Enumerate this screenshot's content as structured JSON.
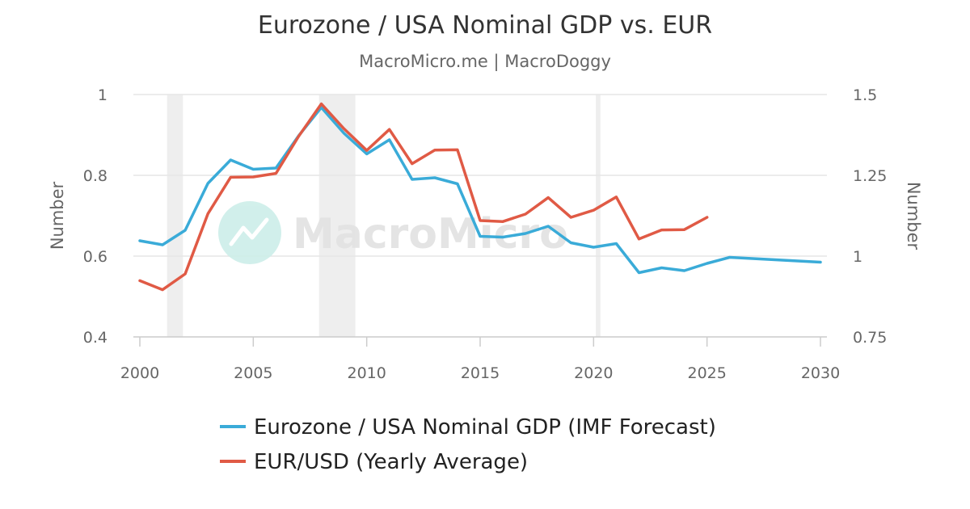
{
  "chart_data": {
    "type": "line",
    "title": "Eurozone / USA Nominal GDP vs. EUR",
    "subtitle": "MacroMicro.me | MacroDoggy",
    "watermark": "MacroMicro",
    "xlim": [
      2000,
      2030
    ],
    "x_ticks": [
      2000,
      2005,
      2010,
      2015,
      2020,
      2025,
      2030
    ],
    "y_left": {
      "label": "Number",
      "lim": [
        0.4,
        1.0
      ],
      "ticks": [
        "0.4",
        "0.6",
        "0.8",
        "1"
      ]
    },
    "y_right": {
      "label": "Number",
      "lim": [
        0.75,
        1.5
      ],
      "ticks": [
        "0.75",
        "1",
        "1.25",
        "1.5"
      ]
    },
    "recession_bands": [
      [
        2001.2,
        2001.9
      ],
      [
        2007.9,
        2009.5
      ],
      [
        2020.1,
        2020.3
      ]
    ],
    "grid": true,
    "legend_position": "bottom",
    "series": [
      {
        "name": "Eurozone / USA Nominal GDP (IMF Forecast)",
        "axis": "left",
        "color": "#3aabd8",
        "x": [
          2000,
          2001,
          2002,
          2003,
          2004,
          2005,
          2006,
          2007,
          2008,
          2009,
          2010,
          2011,
          2012,
          2013,
          2014,
          2015,
          2016,
          2017,
          2018,
          2019,
          2020,
          2021,
          2022,
          2023,
          2024,
          2025,
          2026,
          2027,
          2028,
          2029,
          2030
        ],
        "values": [
          0.638,
          0.628,
          0.664,
          0.78,
          0.838,
          0.815,
          0.818,
          0.898,
          0.968,
          0.904,
          0.853,
          0.888,
          0.79,
          0.794,
          0.779,
          0.649,
          0.647,
          0.656,
          0.674,
          0.633,
          0.622,
          0.631,
          0.559,
          0.571,
          0.564,
          0.582,
          0.597,
          0.594,
          0.591,
          0.588,
          0.585
        ]
      },
      {
        "name": "EUR/USD (Yearly Average)",
        "axis": "right",
        "color": "#e05a45",
        "x": [
          2000,
          2001,
          2002,
          2003,
          2004,
          2005,
          2006,
          2007,
          2008,
          2009,
          2010,
          2011,
          2012,
          2013,
          2014,
          2015,
          2016,
          2017,
          2018,
          2019,
          2020,
          2021,
          2022,
          2023,
          2024,
          2025
        ],
        "values": [
          0.924,
          0.896,
          0.945,
          1.131,
          1.244,
          1.245,
          1.256,
          1.371,
          1.471,
          1.394,
          1.327,
          1.392,
          1.286,
          1.328,
          1.329,
          1.11,
          1.107,
          1.13,
          1.181,
          1.12,
          1.142,
          1.183,
          1.053,
          1.081,
          1.082,
          1.12
        ]
      }
    ]
  }
}
